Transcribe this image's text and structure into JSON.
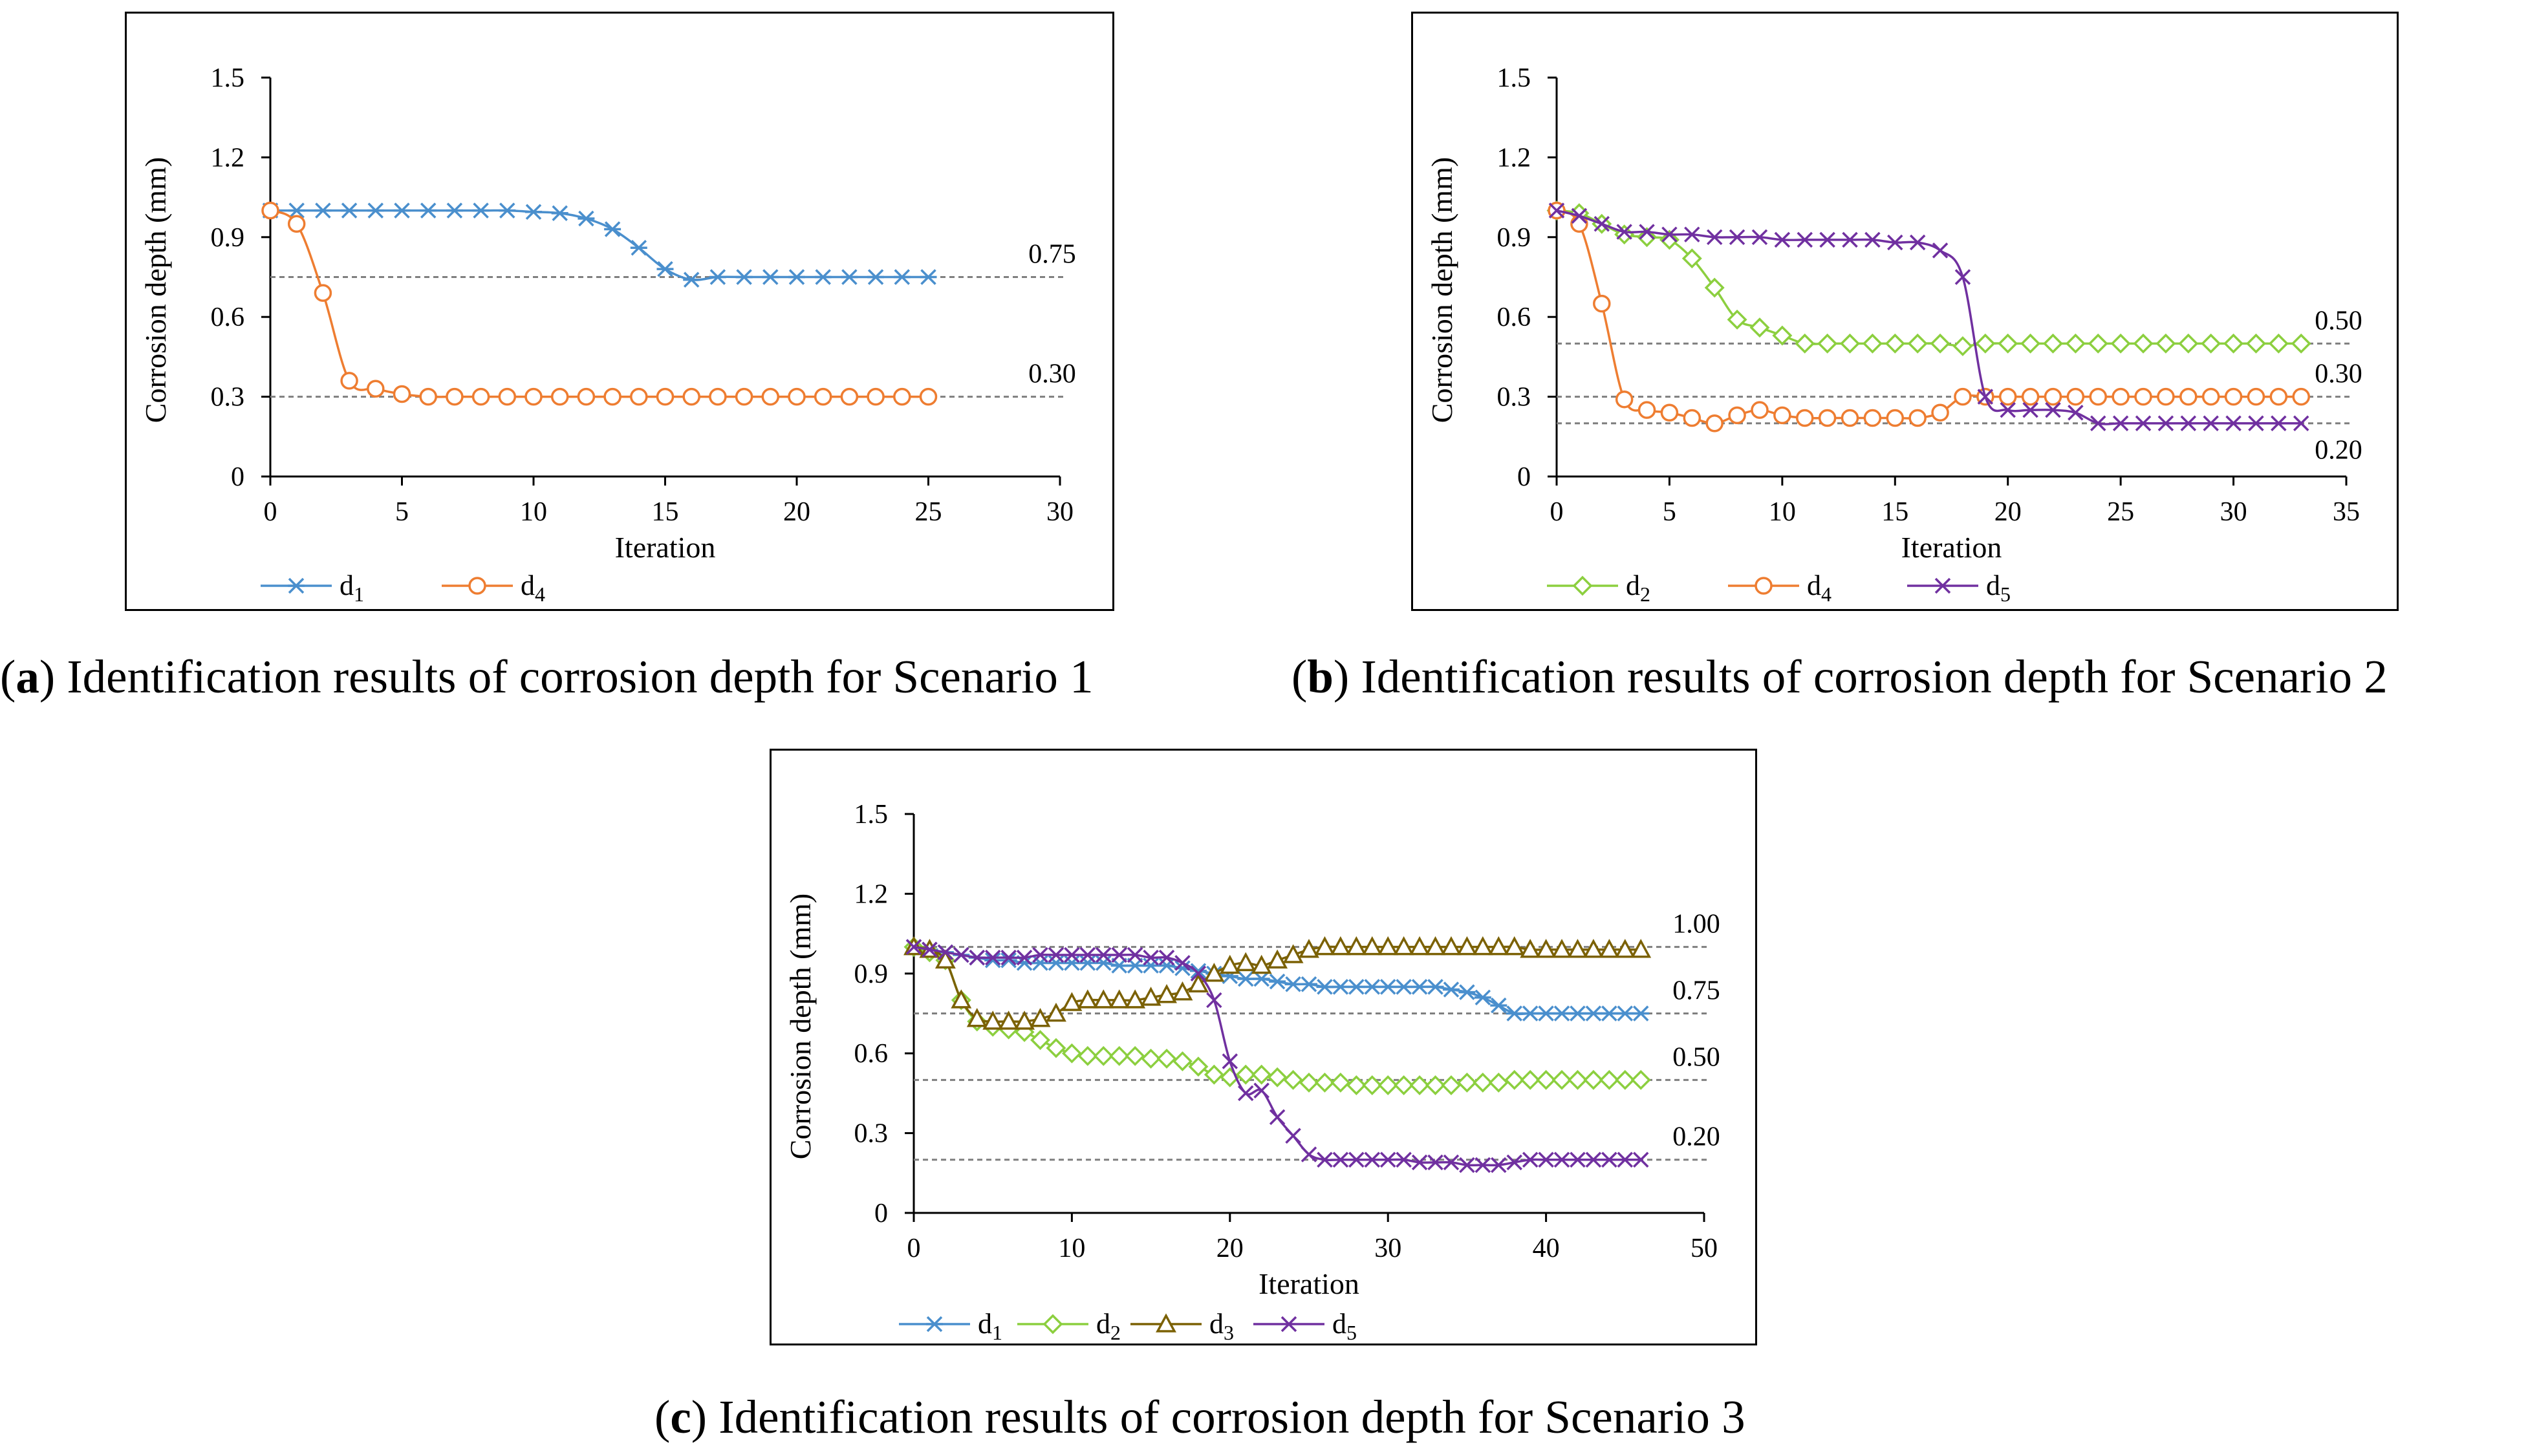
{
  "colors": {
    "d1": "#4a8fcd",
    "d2": "#8ccf3f",
    "d3": "#7b6104",
    "d4": "#ee7d31",
    "d5": "#7030a0",
    "ref": "#7f7f7f"
  },
  "chart_data": [
    {
      "type": "line",
      "id": "a",
      "caption": {
        "letter": "a",
        "text": "Identification results of corrosion depth for Scenario 1"
      },
      "xlabel": "Iteration",
      "ylabel": "Corrosion depth (mm)",
      "xlim": [
        0,
        30
      ],
      "ylim": [
        0,
        1.5
      ],
      "xticks": [
        "0",
        "5",
        "10",
        "15",
        "20",
        "25",
        "30"
      ],
      "yticks": [
        "0",
        "0.3",
        "0.6",
        "0.9",
        "1.2",
        "1.5"
      ],
      "reference_lines": [
        {
          "value": 0.75,
          "label": "0.75"
        },
        {
          "value": 0.3,
          "label": "0.30"
        }
      ],
      "series": [
        {
          "name": "d",
          "sub": "1",
          "key": "d1",
          "marker": "asterisk",
          "x_start": 0,
          "values": [
            1.0,
            1.0,
            1.0,
            1.0,
            1.0,
            1.0,
            1.0,
            1.0,
            1.0,
            1.0,
            0.995,
            0.99,
            0.97,
            0.93,
            0.86,
            0.78,
            0.74,
            0.75,
            0.75,
            0.75,
            0.75,
            0.75,
            0.75,
            0.75,
            0.75,
            0.75
          ]
        },
        {
          "name": "d",
          "sub": "4",
          "key": "d4",
          "marker": "circle",
          "x_start": 0,
          "values": [
            1.0,
            0.95,
            0.69,
            0.36,
            0.33,
            0.31,
            0.3,
            0.3,
            0.3,
            0.3,
            0.3,
            0.3,
            0.3,
            0.3,
            0.3,
            0.3,
            0.3,
            0.3,
            0.3,
            0.3,
            0.3,
            0.3,
            0.3,
            0.3,
            0.3,
            0.3
          ]
        }
      ]
    },
    {
      "type": "line",
      "id": "b",
      "caption": {
        "letter": "b",
        "text": "Identification results of corrosion depth for Scenario 2"
      },
      "xlabel": "Iteration",
      "ylabel": "Corrosion depth (mm)",
      "xlim": [
        0,
        35
      ],
      "ylim": [
        0,
        1.5
      ],
      "xticks": [
        "0",
        "5",
        "10",
        "15",
        "20",
        "25",
        "30",
        "35"
      ],
      "yticks": [
        "0",
        "0.3",
        "0.6",
        "0.9",
        "1.2",
        "1.5"
      ],
      "reference_lines": [
        {
          "value": 0.5,
          "label": "0.50"
        },
        {
          "value": 0.3,
          "label": "0.30"
        },
        {
          "value": 0.2,
          "label": "0.20"
        }
      ],
      "series": [
        {
          "name": "d",
          "sub": "2",
          "key": "d2",
          "marker": "diamond",
          "x_start": 0,
          "values": [
            1.0,
            0.99,
            0.95,
            0.91,
            0.9,
            0.89,
            0.82,
            0.71,
            0.59,
            0.56,
            0.53,
            0.5,
            0.5,
            0.5,
            0.5,
            0.5,
            0.5,
            0.5,
            0.49,
            0.5,
            0.5,
            0.5,
            0.5,
            0.5,
            0.5,
            0.5,
            0.5,
            0.5,
            0.5,
            0.5,
            0.5,
            0.5,
            0.5,
            0.5
          ]
        },
        {
          "name": "d",
          "sub": "4",
          "key": "d4",
          "marker": "circle",
          "x_start": 0,
          "values": [
            1.0,
            0.95,
            0.65,
            0.29,
            0.25,
            0.24,
            0.22,
            0.2,
            0.23,
            0.25,
            0.23,
            0.22,
            0.22,
            0.22,
            0.22,
            0.22,
            0.22,
            0.24,
            0.3,
            0.3,
            0.3,
            0.3,
            0.3,
            0.3,
            0.3,
            0.3,
            0.3,
            0.3,
            0.3,
            0.3,
            0.3,
            0.3,
            0.3,
            0.3
          ]
        },
        {
          "name": "d",
          "sub": "5",
          "key": "d5",
          "marker": "x",
          "x_start": 0,
          "values": [
            1.0,
            0.98,
            0.95,
            0.92,
            0.92,
            0.91,
            0.91,
            0.9,
            0.9,
            0.9,
            0.89,
            0.89,
            0.89,
            0.89,
            0.89,
            0.88,
            0.88,
            0.85,
            0.75,
            0.3,
            0.25,
            0.25,
            0.25,
            0.24,
            0.2,
            0.2,
            0.2,
            0.2,
            0.2,
            0.2,
            0.2,
            0.2,
            0.2,
            0.2
          ]
        }
      ]
    },
    {
      "type": "line",
      "id": "c",
      "caption": {
        "letter": "c",
        "text": "Identification results of corrosion depth for Scenario 3"
      },
      "xlabel": "Iteration",
      "ylabel": "Corrosion depth (mm)",
      "xlim": [
        0,
        50
      ],
      "ylim": [
        0,
        1.5
      ],
      "xticks": [
        "0",
        "10",
        "20",
        "30",
        "40",
        "50"
      ],
      "yticks": [
        "0",
        "0.3",
        "0.6",
        "0.9",
        "1.2",
        "1.5"
      ],
      "reference_lines": [
        {
          "value": 1.0,
          "label": "1.00"
        },
        {
          "value": 0.75,
          "label": "0.75"
        },
        {
          "value": 0.5,
          "label": "0.50"
        },
        {
          "value": 0.2,
          "label": "0.20"
        }
      ],
      "series": [
        {
          "name": "d",
          "sub": "1",
          "key": "d1",
          "marker": "asterisk",
          "x_start": 0,
          "values": [
            1.0,
            0.99,
            0.98,
            0.97,
            0.96,
            0.95,
            0.95,
            0.94,
            0.94,
            0.94,
            0.94,
            0.94,
            0.94,
            0.93,
            0.93,
            0.93,
            0.93,
            0.92,
            0.91,
            0.9,
            0.89,
            0.88,
            0.88,
            0.87,
            0.86,
            0.86,
            0.85,
            0.85,
            0.85,
            0.85,
            0.85,
            0.85,
            0.85,
            0.85,
            0.84,
            0.83,
            0.81,
            0.78,
            0.75,
            0.75,
            0.75,
            0.75,
            0.75,
            0.75,
            0.75,
            0.75,
            0.75
          ]
        },
        {
          "name": "d",
          "sub": "2",
          "key": "d2",
          "marker": "diamond",
          "x_start": 0,
          "values": [
            1.0,
            0.98,
            0.95,
            0.8,
            0.72,
            0.7,
            0.69,
            0.68,
            0.65,
            0.62,
            0.6,
            0.59,
            0.59,
            0.59,
            0.59,
            0.58,
            0.58,
            0.57,
            0.55,
            0.52,
            0.51,
            0.52,
            0.52,
            0.51,
            0.5,
            0.49,
            0.49,
            0.49,
            0.48,
            0.48,
            0.48,
            0.48,
            0.48,
            0.48,
            0.48,
            0.49,
            0.49,
            0.49,
            0.5,
            0.5,
            0.5,
            0.5,
            0.5,
            0.5,
            0.5,
            0.5,
            0.5
          ]
        },
        {
          "name": "d",
          "sub": "3",
          "key": "d3",
          "marker": "triangle",
          "x_start": 0,
          "values": [
            1.0,
            0.99,
            0.95,
            0.8,
            0.73,
            0.72,
            0.72,
            0.72,
            0.73,
            0.75,
            0.79,
            0.8,
            0.8,
            0.8,
            0.8,
            0.81,
            0.82,
            0.83,
            0.86,
            0.9,
            0.93,
            0.94,
            0.93,
            0.95,
            0.97,
            0.99,
            1.0,
            1.0,
            1.0,
            1.0,
            1.0,
            1.0,
            1.0,
            1.0,
            1.0,
            1.0,
            1.0,
            1.0,
            1.0,
            0.99,
            0.99,
            0.99,
            0.99,
            0.99,
            0.99,
            0.99,
            0.99
          ]
        },
        {
          "name": "d",
          "sub": "5",
          "key": "d5",
          "marker": "x",
          "x_start": 0,
          "values": [
            1.0,
            0.99,
            0.98,
            0.97,
            0.96,
            0.96,
            0.96,
            0.96,
            0.97,
            0.97,
            0.97,
            0.97,
            0.97,
            0.97,
            0.97,
            0.96,
            0.96,
            0.94,
            0.9,
            0.8,
            0.57,
            0.45,
            0.46,
            0.36,
            0.29,
            0.22,
            0.2,
            0.2,
            0.2,
            0.2,
            0.2,
            0.2,
            0.19,
            0.19,
            0.19,
            0.18,
            0.18,
            0.18,
            0.19,
            0.2,
            0.2,
            0.2,
            0.2,
            0.2,
            0.2,
            0.2,
            0.2
          ]
        }
      ]
    }
  ]
}
